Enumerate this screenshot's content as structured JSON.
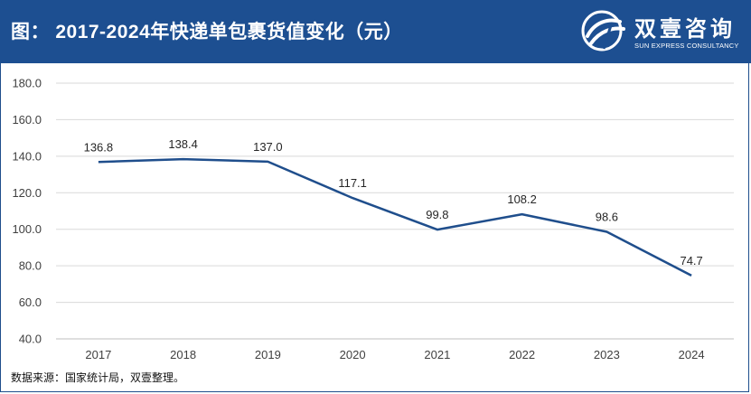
{
  "header": {
    "title": "图： 2017-2024年快递单包裹货值变化（元）",
    "bg_color": "#1d4f91"
  },
  "logo": {
    "name": "双壹咨询",
    "subtitle": "SUN EXPRESS CONSULTANCY",
    "icon": "brand-logo-icon"
  },
  "chart_data": {
    "type": "line",
    "title": "2017-2024年快递单包裹货值变化（元）",
    "categories": [
      "2017",
      "2018",
      "2019",
      "2020",
      "2021",
      "2022",
      "2023",
      "2024"
    ],
    "values": [
      136.8,
      138.4,
      137.0,
      117.1,
      99.8,
      108.2,
      98.6,
      74.7
    ],
    "data_labels": [
      "136.8",
      "138.4",
      "137.0",
      "117.1",
      "99.8",
      "108.2",
      "98.6",
      "74.7"
    ],
    "y_ticks": [
      "40.0",
      "60.0",
      "80.0",
      "100.0",
      "120.0",
      "140.0",
      "160.0",
      "180.0"
    ],
    "ylim": [
      40,
      180
    ],
    "xlabel": "",
    "ylabel": "",
    "grid": true,
    "line_color": "#1f4e8c"
  },
  "footer": {
    "source": "数据来源：国家统计局，双壹整理。"
  }
}
